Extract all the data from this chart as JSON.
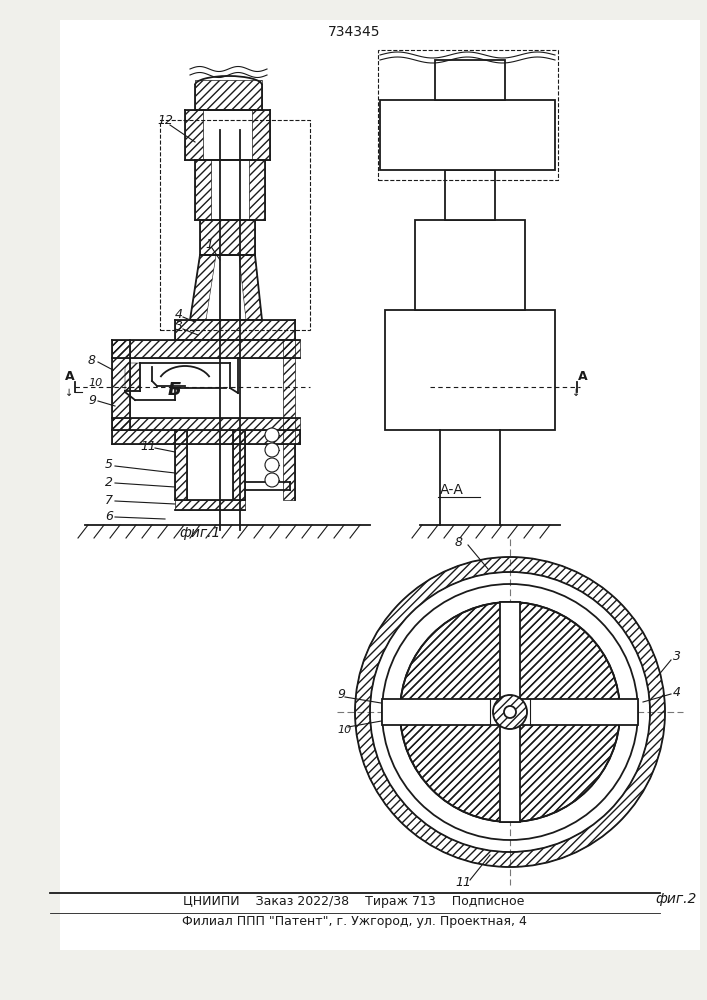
{
  "patent_number": "734345",
  "bg_color": "#f0f0eb",
  "line_color": "#1a1a1a",
  "fig1_caption": "фиг.1",
  "fig2_caption": "фиг.2",
  "section_label": "А-А",
  "footer_line1": "ЦНИИПИ    Заказ 2022/38    Тираж 713    Подписное",
  "footer_line2": "Филиал ППП \"Патент\", г. Ужгород, ул. Проектная, 4"
}
